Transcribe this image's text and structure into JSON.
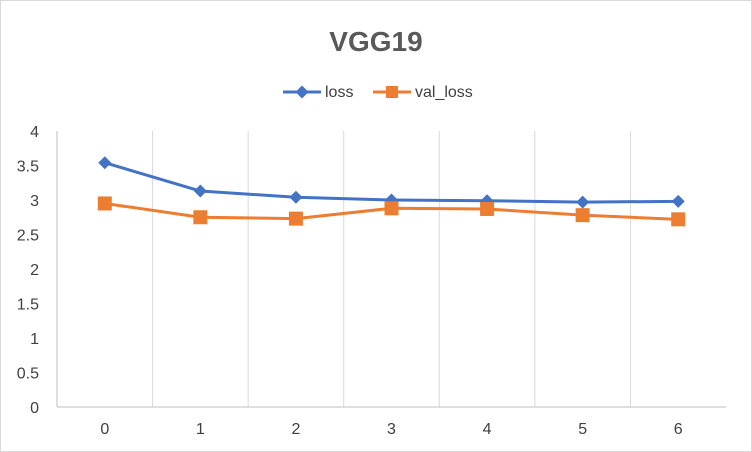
{
  "chart_data": {
    "type": "line",
    "title": "VGG19",
    "xlabel": "",
    "ylabel": "",
    "categories": [
      "0",
      "1",
      "2",
      "3",
      "4",
      "5",
      "6"
    ],
    "series": [
      {
        "name": "loss",
        "color": "#4472C4",
        "marker": "diamond",
        "values": [
          3.54,
          3.13,
          3.04,
          3.0,
          2.99,
          2.97,
          2.98
        ]
      },
      {
        "name": "val_loss",
        "color": "#ED7D31",
        "marker": "square",
        "values": [
          2.95,
          2.75,
          2.73,
          2.88,
          2.87,
          2.78,
          2.72
        ]
      }
    ],
    "ylim": [
      0,
      4
    ],
    "yticks": [
      "0",
      "0.5",
      "1",
      "1.5",
      "2",
      "2.5",
      "3",
      "3.5",
      "4"
    ],
    "grid": "vertical",
    "legend": "top-center"
  }
}
